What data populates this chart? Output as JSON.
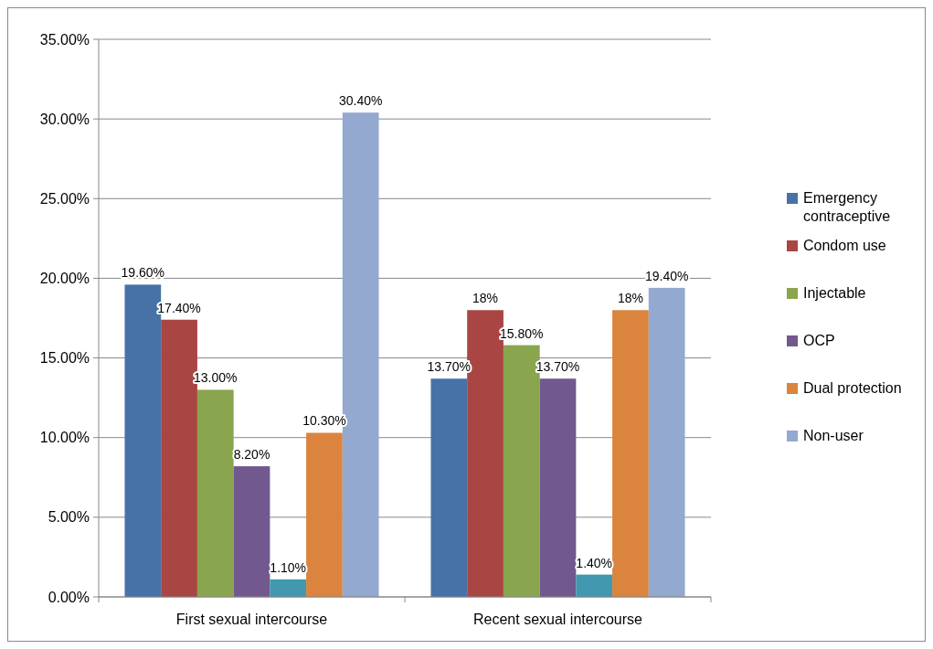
{
  "chart_data": {
    "type": "bar",
    "categories": [
      "First sexual intercourse",
      "Recent sexual intercourse"
    ],
    "series": [
      {
        "name": "Emergency contraceptive",
        "color": "#4672a8",
        "values": [
          19.6,
          13.7
        ],
        "value_labels": [
          "19.60%",
          "13.70%"
        ]
      },
      {
        "name": "Condom use",
        "color": "#a94543",
        "values": [
          17.4,
          18
        ],
        "value_labels": [
          "17.40%",
          "18%"
        ]
      },
      {
        "name": "Injectable",
        "color": "#89a54e",
        "values": [
          13,
          15.8
        ],
        "value_labels": [
          "13.00%",
          "15.80%"
        ]
      },
      {
        "name": "OCP",
        "color": "#71588f",
        "values": [
          8.2,
          13.7
        ],
        "value_labels": [
          "8.20%",
          "13.70%"
        ]
      },
      {
        "color": "#4198af",
        "values": [
          1.1,
          1.4
        ],
        "value_labels": [
          "1.10%",
          "1.40%"
        ]
      },
      {
        "name": "Dual protection",
        "color": "#db843d",
        "values": [
          10.3,
          18
        ],
        "value_labels": [
          "10.30%",
          "18%"
        ]
      },
      {
        "name": "Non-user",
        "color": "#93a9cf",
        "values": [
          30.4,
          19.4
        ],
        "value_labels": [
          "30.40%",
          "19.40%"
        ]
      }
    ],
    "ylim": [
      0,
      35
    ],
    "yticks": [
      {
        "value": 0,
        "label": "0.00%"
      },
      {
        "value": 5,
        "label": "5.00%"
      },
      {
        "value": 10,
        "label": "10.00%"
      },
      {
        "value": 15,
        "label": "15.00%"
      },
      {
        "value": 20,
        "label": "20.00%"
      },
      {
        "value": 25,
        "label": "25.00%"
      },
      {
        "value": 30,
        "label": "30.00%"
      },
      {
        "value": 35,
        "label": "35.00%"
      }
    ],
    "grid": "y",
    "legend": "right"
  }
}
